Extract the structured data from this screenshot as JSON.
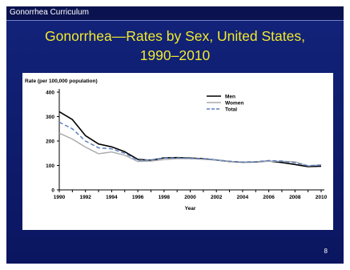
{
  "header": {
    "label": "Gonorrhea Curriculum"
  },
  "slide": {
    "title_line1": "Gonorrhea—Rates by Sex, United States,",
    "title_line2": "1990–2010",
    "page_number": "8"
  },
  "colors": {
    "men": "#000000",
    "women": "#aaaaaa",
    "total": "#5b7fc0",
    "title": "#f2ea2b"
  },
  "chart_data": {
    "type": "line",
    "ylabel": "Rate (per 100,000 population)",
    "xlabel": "Year",
    "x": [
      1990,
      1991,
      1992,
      1993,
      1994,
      1995,
      1996,
      1997,
      1998,
      1999,
      2000,
      2001,
      2002,
      2003,
      2004,
      2005,
      2006,
      2007,
      2008,
      2009,
      2010
    ],
    "ylim": [
      0,
      400
    ],
    "xlim": [
      1990,
      2010
    ],
    "yticks": [
      "0",
      "100",
      "200",
      "300",
      "400"
    ],
    "xticks": [
      "1990",
      "1992",
      "1994",
      "1996",
      "1998",
      "2000",
      "2002",
      "2004",
      "2006",
      "2008",
      "2010"
    ],
    "legend_position": "top-right",
    "series": [
      {
        "name": "Men",
        "style": "solid",
        "values": [
          320,
          288,
          222,
          188,
          176,
          156,
          125,
          121,
          131,
          132,
          130,
          128,
          122,
          116,
          113,
          114,
          118,
          112,
          104,
          95,
          97
        ]
      },
      {
        "name": "Women",
        "style": "solid",
        "values": [
          232,
          208,
          175,
          148,
          155,
          142,
          116,
          118,
          124,
          128,
          128,
          125,
          122,
          116,
          114,
          115,
          117,
          117,
          115,
          98,
          103
        ]
      },
      {
        "name": "Total",
        "style": "dashed",
        "values": [
          277,
          250,
          200,
          172,
          168,
          150,
          121,
          123,
          130,
          131,
          129,
          128,
          123,
          117,
          114,
          115,
          120,
          118,
          111,
          99,
          101
        ]
      }
    ]
  }
}
